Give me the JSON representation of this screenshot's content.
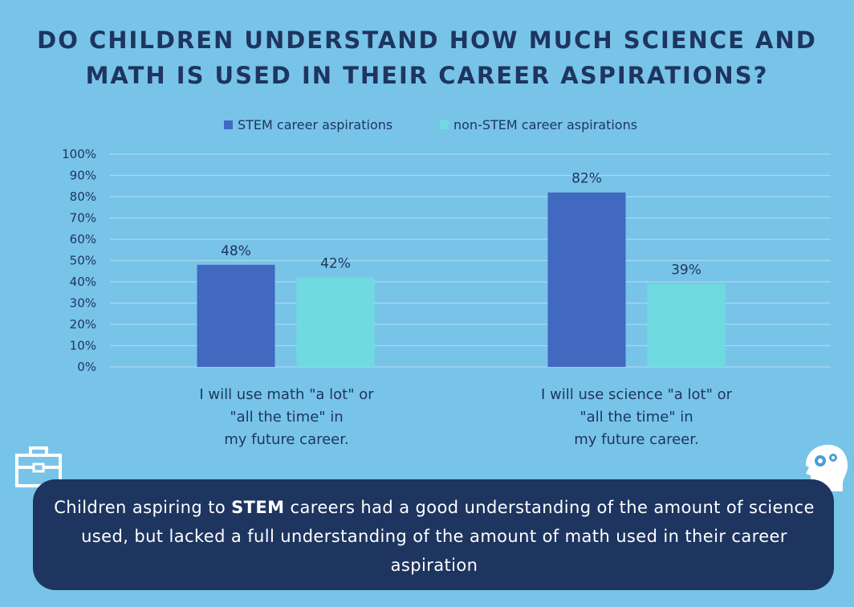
{
  "title": "Do children understand how much science and\nmath is used in their career aspirations?",
  "legend": [
    {
      "label": "STEM career aspirations",
      "color": "#4169c0"
    },
    {
      "label": "non-STEM career aspirations",
      "color": "#6fdbe0"
    }
  ],
  "chart_data": {
    "type": "bar",
    "categories": [
      "I will use math \"a lot\" or\n\"all the time\" in\nmy future career.",
      "I will use science \"a lot\" or\n\"all the time\" in\nmy future career."
    ],
    "series": [
      {
        "name": "STEM career aspirations",
        "values": [
          48,
          82
        ],
        "labels": [
          "48%",
          "82%"
        ],
        "color": "#4169c0"
      },
      {
        "name": "non-STEM career aspirations",
        "values": [
          42,
          39
        ],
        "labels": [
          "42%",
          "39%"
        ],
        "color": "#6fdbe0"
      }
    ],
    "ylim": [
      0,
      100
    ],
    "yticks": [
      "0%",
      "10%",
      "20%",
      "30%",
      "40%",
      "50%",
      "60%",
      "70%",
      "80%",
      "90%",
      "100%"
    ],
    "grid": true,
    "legend_position": "top-center"
  },
  "banner": {
    "before": "Children aspiring to ",
    "bold": "STEM",
    "after": " careers had a good understanding of the amount of science used, but lacked a full understanding of the amount of math used in their career aspiration"
  },
  "icons": {
    "left": "briefcase-icon",
    "right": "head-gears-icon"
  }
}
